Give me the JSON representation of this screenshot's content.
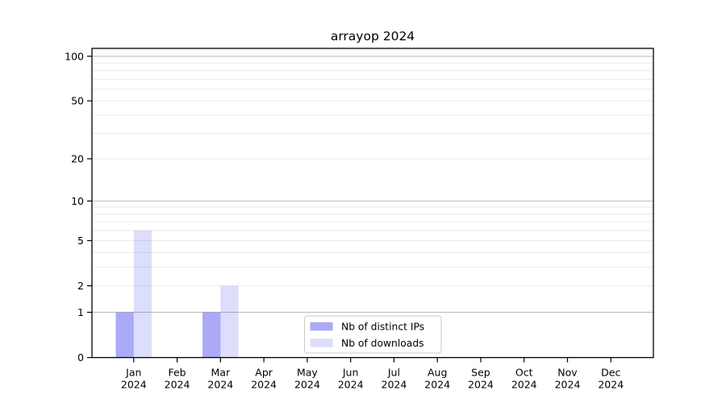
{
  "chart_data": {
    "type": "bar",
    "title": "arrayop 2024",
    "year": "2024",
    "categories": [
      "Jan",
      "Feb",
      "Mar",
      "Apr",
      "May",
      "Jun",
      "Jul",
      "Aug",
      "Sep",
      "Oct",
      "Nov",
      "Dec"
    ],
    "series": [
      {
        "name": "Nb of distinct IPs",
        "color": "rgba(85,85,240,0.5)",
        "values": [
          1,
          0,
          1,
          0,
          0,
          0,
          0,
          0,
          0,
          0,
          0,
          0
        ]
      },
      {
        "name": "Nb of downloads",
        "color": "rgba(85,85,240,0.2)",
        "values": [
          6,
          0,
          2,
          0,
          0,
          0,
          0,
          0,
          0,
          0,
          0,
          0
        ]
      }
    ],
    "yscale": "log1p",
    "ylim": [
      0,
      113
    ],
    "yticks": [
      0,
      1,
      2,
      5,
      10,
      20,
      50,
      100
    ],
    "ytick_labels": [
      "0",
      "1",
      "2",
      "5",
      "10",
      "20",
      "50",
      "100"
    ],
    "gridlines": {
      "major": [
        1,
        10,
        100
      ],
      "minor": [
        2,
        3,
        4,
        5,
        6,
        7,
        8,
        9,
        20,
        30,
        40,
        50,
        60,
        70,
        80,
        90,
        110
      ]
    },
    "legend": {
      "position": "lower-center"
    },
    "colors": {
      "major_grid": "#bdbdbd",
      "minor_grid": "#e9e9e9",
      "axis": "#000000",
      "legend_border": "#cbcbcb",
      "legend_bg": "#ffffff"
    }
  }
}
